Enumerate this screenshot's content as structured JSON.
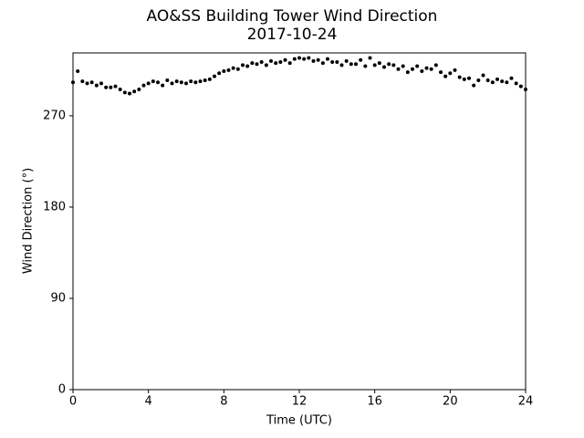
{
  "chart_data": {
    "type": "scatter",
    "title": "AO&SS Building Tower Wind Direction",
    "subtitle": "2017-10-24",
    "x_label": "Time (UTC)",
    "y_label": "Wind Direction (°)",
    "color": "#000000",
    "xlim": [
      0,
      24
    ],
    "xticks": [
      0,
      4,
      8,
      12,
      16,
      20,
      24
    ],
    "ylim": [
      0,
      332
    ],
    "yticks": [
      0,
      90,
      180,
      270
    ],
    "x": [
      0,
      0.25,
      0.5,
      0.75,
      1,
      1.25,
      1.5,
      1.75,
      2,
      2.25,
      2.5,
      2.75,
      3,
      3.25,
      3.5,
      3.75,
      4,
      4.25,
      4.5,
      4.75,
      5,
      5.25,
      5.5,
      5.75,
      6,
      6.25,
      6.5,
      6.75,
      7,
      7.25,
      7.5,
      7.75,
      8,
      8.25,
      8.5,
      8.75,
      9,
      9.25,
      9.5,
      9.75,
      10,
      10.25,
      10.5,
      10.75,
      11,
      11.25,
      11.5,
      11.75,
      12,
      12.25,
      12.5,
      12.75,
      13,
      13.25,
      13.5,
      13.75,
      14,
      14.25,
      14.5,
      14.75,
      15,
      15.25,
      15.5,
      15.75,
      16,
      16.25,
      16.5,
      16.75,
      17,
      17.25,
      17.5,
      17.75,
      18,
      18.25,
      18.5,
      18.75,
      19,
      19.25,
      19.5,
      19.75,
      20,
      20.25,
      20.5,
      20.75,
      21,
      21.25,
      21.5,
      21.75,
      22,
      22.25,
      22.5,
      22.75,
      23,
      23.25,
      23.5,
      23.75,
      24
    ],
    "values": [
      303,
      314,
      304,
      302,
      303,
      300,
      302,
      298,
      298,
      299,
      296,
      293,
      292,
      294,
      296,
      300,
      302,
      304,
      303,
      300,
      305,
      302,
      304,
      303,
      302,
      304,
      303,
      304,
      305,
      306,
      309,
      312,
      314,
      315,
      317,
      316,
      320,
      319,
      322,
      321,
      323,
      320,
      324,
      322,
      323,
      325,
      322,
      326,
      327,
      326,
      327,
      324,
      325,
      322,
      326,
      323,
      323,
      320,
      324,
      321,
      321,
      325,
      319,
      327,
      320,
      322,
      318,
      321,
      320,
      316,
      319,
      313,
      316,
      319,
      314,
      317,
      316,
      320,
      313,
      309,
      312,
      315,
      308,
      306,
      307,
      300,
      305,
      310,
      305,
      303,
      306,
      304,
      303,
      307,
      302,
      299,
      296
    ]
  }
}
